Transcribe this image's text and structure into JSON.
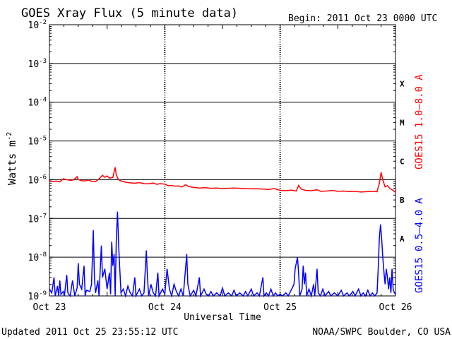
{
  "chart_data": {
    "type": "line",
    "title": "GOES Xray Flux (5 minute data)",
    "begin_label": "Begin:  2011 Oct 23 0000 UTC",
    "xlabel": "Universal Time",
    "ylabel": "Watts m",
    "ylabel_exponent": "-2",
    "footer_left": "Updated 2011 Oct 25 23:55:12 UTC",
    "footer_right": "NOAA/SWPC Boulder, CO USA",
    "y_scale": "log",
    "ylim": [
      1e-09,
      0.01
    ],
    "y_ticks": [
      {
        "base": "10",
        "exp": "-2",
        "value": 0.01
      },
      {
        "base": "10",
        "exp": "-3",
        "value": 0.001
      },
      {
        "base": "10",
        "exp": "-4",
        "value": 0.0001
      },
      {
        "base": "10",
        "exp": "-5",
        "value": 1e-05
      },
      {
        "base": "10",
        "exp": "-6",
        "value": 1e-06
      },
      {
        "base": "10",
        "exp": "-7",
        "value": 1e-07
      },
      {
        "base": "10",
        "exp": "-8",
        "value": 1e-08
      },
      {
        "base": "10",
        "exp": "-9",
        "value": 1e-09
      }
    ],
    "x_ticks": [
      {
        "label": "Oct 23",
        "day": 0
      },
      {
        "label": "Oct 24",
        "day": 1
      },
      {
        "label": "Oct 25",
        "day": 2
      },
      {
        "label": "Oct 26",
        "day": 3
      }
    ],
    "xlim_days": [
      0,
      3
    ],
    "flare_classes": [
      {
        "label": "X",
        "value": 0.0003
      },
      {
        "label": "M",
        "value": 3e-05
      },
      {
        "label": "C",
        "value": 3e-06
      },
      {
        "label": "B",
        "value": 3e-07
      },
      {
        "label": "A",
        "value": 3e-08
      }
    ],
    "series": [
      {
        "name": "GOES15 1.0–8.0 A",
        "color": "#ff0000",
        "points": [
          [
            0.0,
            9.5e-07
          ],
          [
            0.03,
            9e-07
          ],
          [
            0.06,
            9.2e-07
          ],
          [
            0.09,
            8.8e-07
          ],
          [
            0.12,
            1.05e-06
          ],
          [
            0.15,
            1e-06
          ],
          [
            0.18,
            9.6e-07
          ],
          [
            0.21,
            9.9e-07
          ],
          [
            0.24,
            1.2e-06
          ],
          [
            0.25,
            1e-06
          ],
          [
            0.28,
            9.5e-07
          ],
          [
            0.31,
            9.3e-07
          ],
          [
            0.34,
            9.8e-07
          ],
          [
            0.37,
            9e-07
          ],
          [
            0.4,
            8.9e-07
          ],
          [
            0.43,
            1.05e-06
          ],
          [
            0.46,
            1.3e-06
          ],
          [
            0.48,
            1.15e-06
          ],
          [
            0.5,
            1.25e-06
          ],
          [
            0.52,
            1.1e-06
          ],
          [
            0.55,
            1.15e-06
          ],
          [
            0.57,
            2.1e-06
          ],
          [
            0.58,
            1.3e-06
          ],
          [
            0.6,
            1e-06
          ],
          [
            0.63,
            9e-07
          ],
          [
            0.66,
            8.6e-07
          ],
          [
            0.7,
            8.3e-07
          ],
          [
            0.74,
            8.1e-07
          ],
          [
            0.78,
            8.4e-07
          ],
          [
            0.82,
            7.9e-07
          ],
          [
            0.86,
            7.8e-07
          ],
          [
            0.9,
            8.2e-07
          ],
          [
            0.93,
            7.6e-07
          ],
          [
            0.96,
            7.9e-07
          ],
          [
            1.0,
            7.7e-07
          ],
          [
            1.03,
            7e-07
          ],
          [
            1.06,
            7.1e-07
          ],
          [
            1.09,
            6.8e-07
          ],
          [
            1.12,
            6.9e-07
          ],
          [
            1.15,
            6.5e-07
          ],
          [
            1.18,
            7.4e-07
          ],
          [
            1.21,
            6.6e-07
          ],
          [
            1.25,
            6.3e-07
          ],
          [
            1.3,
            6.1e-07
          ],
          [
            1.35,
            6.2e-07
          ],
          [
            1.4,
            6e-07
          ],
          [
            1.45,
            6.1e-07
          ],
          [
            1.5,
            5.9e-07
          ],
          [
            1.55,
            6e-07
          ],
          [
            1.6,
            6.1e-07
          ],
          [
            1.65,
            6e-07
          ],
          [
            1.7,
            5.9e-07
          ],
          [
            1.75,
            5.8e-07
          ],
          [
            1.8,
            5.85e-07
          ],
          [
            1.85,
            5.7e-07
          ],
          [
            1.9,
            5.6e-07
          ],
          [
            1.95,
            5.9e-07
          ],
          [
            2.0,
            5.3e-07
          ],
          [
            2.05,
            5.2e-07
          ],
          [
            2.1,
            5.4e-07
          ],
          [
            2.14,
            5.1e-07
          ],
          [
            2.16,
            7.1e-07
          ],
          [
            2.18,
            5.8e-07
          ],
          [
            2.22,
            5.3e-07
          ],
          [
            2.27,
            5.2e-07
          ],
          [
            2.32,
            5.5e-07
          ],
          [
            2.35,
            5e-07
          ],
          [
            2.4,
            5.1e-07
          ],
          [
            2.45,
            5.3e-07
          ],
          [
            2.5,
            5e-07
          ],
          [
            2.55,
            5.1e-07
          ],
          [
            2.6,
            4.9e-07
          ],
          [
            2.65,
            5e-07
          ],
          [
            2.7,
            4.8e-07
          ],
          [
            2.75,
            4.9e-07
          ],
          [
            2.8,
            5e-07
          ],
          [
            2.84,
            4.9e-07
          ],
          [
            2.86,
            8e-07
          ],
          [
            2.875,
            1.55e-06
          ],
          [
            2.89,
            1e-06
          ],
          [
            2.91,
            6.5e-07
          ],
          [
            2.93,
            7e-07
          ],
          [
            2.95,
            6e-07
          ],
          [
            2.97,
            5.5e-07
          ],
          [
            2.99,
            5e-07
          ],
          [
            3.0,
            4.6e-07
          ]
        ]
      },
      {
        "name": "GOES15 0.5–4.0 A",
        "color": "#0000ff",
        "points": [
          [
            0.0,
            1.5e-09
          ],
          [
            0.02,
            1.2e-09
          ],
          [
            0.04,
            3e-09
          ],
          [
            0.05,
            1e-09
          ],
          [
            0.07,
            1.8e-09
          ],
          [
            0.08,
            1e-09
          ],
          [
            0.09,
            2.5e-09
          ],
          [
            0.1,
            1.1e-09
          ],
          [
            0.12,
            1.3e-09
          ],
          [
            0.13,
            1e-09
          ],
          [
            0.15,
            3.5e-09
          ],
          [
            0.16,
            1.2e-09
          ],
          [
            0.18,
            1e-09
          ],
          [
            0.2,
            2.5e-09
          ],
          [
            0.22,
            1e-09
          ],
          [
            0.24,
            1.6e-09
          ],
          [
            0.25,
            7e-09
          ],
          [
            0.26,
            2e-09
          ],
          [
            0.28,
            1.5e-09
          ],
          [
            0.3,
            6e-09
          ],
          [
            0.31,
            1e-09
          ],
          [
            0.32,
            1.4e-09
          ],
          [
            0.35,
            1.3e-09
          ],
          [
            0.365,
            2e-09
          ],
          [
            0.38,
            5e-08
          ],
          [
            0.39,
            3e-09
          ],
          [
            0.4,
            1.2e-09
          ],
          [
            0.42,
            2.5e-09
          ],
          [
            0.43,
            1e-09
          ],
          [
            0.45,
            2e-08
          ],
          [
            0.46,
            3e-09
          ],
          [
            0.48,
            5e-09
          ],
          [
            0.5,
            1.5e-09
          ],
          [
            0.52,
            4e-09
          ],
          [
            0.53,
            1.1e-09
          ],
          [
            0.54,
            2.5e-08
          ],
          [
            0.55,
            6e-09
          ],
          [
            0.56,
            1.2e-08
          ],
          [
            0.57,
            1e-09
          ],
          [
            0.58,
            3e-08
          ],
          [
            0.59,
            1.5e-07
          ],
          [
            0.6,
            2e-08
          ],
          [
            0.61,
            5e-09
          ],
          [
            0.62,
            1.2e-09
          ],
          [
            0.64,
            1.5e-09
          ],
          [
            0.66,
            1e-09
          ],
          [
            0.68,
            1.8e-09
          ],
          [
            0.7,
            1.2e-09
          ],
          [
            0.72,
            1e-09
          ],
          [
            0.74,
            3e-09
          ],
          [
            0.75,
            1e-09
          ],
          [
            0.78,
            1.5e-09
          ],
          [
            0.8,
            1e-09
          ],
          [
            0.82,
            1.2e-09
          ],
          [
            0.84,
            1.5e-08
          ],
          [
            0.85,
            3e-09
          ],
          [
            0.86,
            1e-09
          ],
          [
            0.88,
            2e-09
          ],
          [
            0.9,
            1.2e-09
          ],
          [
            0.92,
            1e-09
          ],
          [
            0.94,
            4e-09
          ],
          [
            0.95,
            1e-09
          ],
          [
            0.98,
            1.5e-09
          ],
          [
            1.0,
            1.1e-09
          ],
          [
            1.02,
            5e-09
          ],
          [
            1.04,
            1.5e-09
          ],
          [
            1.06,
            1e-09
          ],
          [
            1.08,
            2e-09
          ],
          [
            1.1,
            1.3e-09
          ],
          [
            1.12,
            1e-09
          ],
          [
            1.14,
            1.5e-09
          ],
          [
            1.16,
            1e-09
          ],
          [
            1.19,
            1.2e-08
          ],
          [
            1.2,
            2e-09
          ],
          [
            1.22,
            1e-09
          ],
          [
            1.25,
            1.4e-09
          ],
          [
            1.27,
            1e-09
          ],
          [
            1.3,
            3e-09
          ],
          [
            1.31,
            1e-09
          ],
          [
            1.34,
            1.5e-09
          ],
          [
            1.36,
            1.1e-09
          ],
          [
            1.38,
            1e-09
          ],
          [
            1.4,
            1.3e-09
          ],
          [
            1.42,
            1e-09
          ],
          [
            1.45,
            1.2e-09
          ],
          [
            1.48,
            1e-09
          ],
          [
            1.5,
            1.6e-09
          ],
          [
            1.52,
            1e-09
          ],
          [
            1.55,
            1.2e-09
          ],
          [
            1.58,
            1e-09
          ],
          [
            1.6,
            1.4e-09
          ],
          [
            1.62,
            1e-09
          ],
          [
            1.65,
            1.2e-09
          ],
          [
            1.68,
            1e-09
          ],
          [
            1.7,
            1.3e-09
          ],
          [
            1.72,
            1e-09
          ],
          [
            1.75,
            1.5e-09
          ],
          [
            1.77,
            1e-09
          ],
          [
            1.8,
            1.2e-09
          ],
          [
            1.82,
            1e-09
          ],
          [
            1.85,
            3e-09
          ],
          [
            1.86,
            1e-09
          ],
          [
            1.88,
            1.2e-09
          ],
          [
            1.9,
            1e-09
          ],
          [
            1.92,
            1.5e-09
          ],
          [
            1.94,
            1e-09
          ],
          [
            1.96,
            1.2e-09
          ],
          [
            1.98,
            1e-09
          ],
          [
            2.0,
            1.1e-09
          ],
          [
            2.02,
            1e-09
          ],
          [
            2.05,
            1.2e-09
          ],
          [
            2.07,
            1e-09
          ],
          [
            2.1,
            1.5e-09
          ],
          [
            2.12,
            2e-09
          ],
          [
            2.13,
            5e-09
          ],
          [
            2.15,
            1e-08
          ],
          [
            2.16,
            4e-09
          ],
          [
            2.17,
            1e-09
          ],
          [
            2.19,
            1.5e-09
          ],
          [
            2.2,
            6e-09
          ],
          [
            2.21,
            2e-09
          ],
          [
            2.22,
            4e-09
          ],
          [
            2.23,
            1e-09
          ],
          [
            2.25,
            1.5e-09
          ],
          [
            2.27,
            1e-09
          ],
          [
            2.29,
            2e-09
          ],
          [
            2.3,
            1e-09
          ],
          [
            2.32,
            5e-09
          ],
          [
            2.33,
            1.2e-09
          ],
          [
            2.35,
            1e-09
          ],
          [
            2.37,
            1.5e-09
          ],
          [
            2.39,
            1e-09
          ],
          [
            2.42,
            1.3e-09
          ],
          [
            2.44,
            1e-09
          ],
          [
            2.47,
            1.2e-09
          ],
          [
            2.5,
            1e-09
          ],
          [
            2.53,
            1.4e-09
          ],
          [
            2.55,
            1e-09
          ],
          [
            2.58,
            1.2e-09
          ],
          [
            2.6,
            1e-09
          ],
          [
            2.63,
            1.3e-09
          ],
          [
            2.65,
            1e-09
          ],
          [
            2.68,
            1.5e-09
          ],
          [
            2.7,
            1e-09
          ],
          [
            2.72,
            1.2e-09
          ],
          [
            2.74,
            1e-09
          ],
          [
            2.76,
            1.4e-09
          ],
          [
            2.78,
            1e-09
          ],
          [
            2.8,
            1.2e-09
          ],
          [
            2.82,
            1e-09
          ],
          [
            2.84,
            1.2e-09
          ],
          [
            2.85,
            5e-09
          ],
          [
            2.86,
            3e-08
          ],
          [
            2.87,
            7e-08
          ],
          [
            2.88,
            3e-08
          ],
          [
            2.89,
            1e-08
          ],
          [
            2.9,
            4e-09
          ],
          [
            2.91,
            2e-09
          ],
          [
            2.92,
            5e-09
          ],
          [
            2.93,
            3e-09
          ],
          [
            2.94,
            1.5e-09
          ],
          [
            2.95,
            3e-09
          ],
          [
            2.96,
            1.2e-09
          ],
          [
            2.97,
            5e-09
          ],
          [
            2.98,
            1.5e-09
          ],
          [
            2.99,
            1.2e-09
          ],
          [
            3.0,
            1.1e-09
          ]
        ]
      }
    ]
  }
}
